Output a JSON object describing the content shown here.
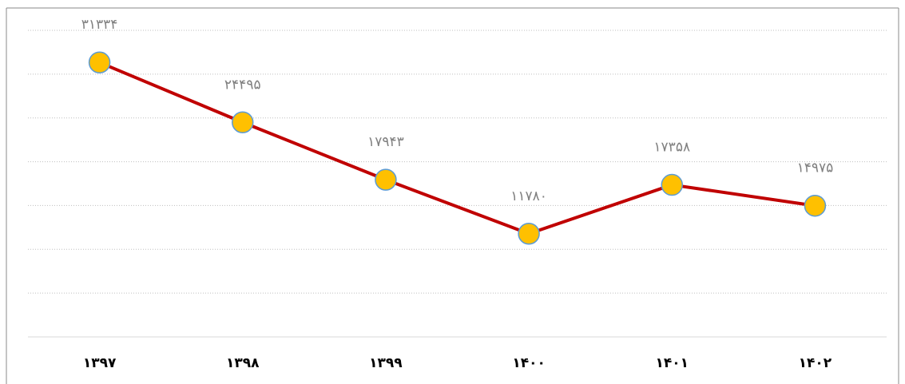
{
  "chart_data": {
    "type": "line",
    "categories": [
      "۱۳۹۷",
      "۱۳۹۸",
      "۱۳۹۹",
      "۱۴۰۰",
      "۱۴۰۱",
      "۱۴۰۲"
    ],
    "series": [
      {
        "color": "#c00000",
        "marker_color": "#ffc000",
        "marker_edge": "#5b9bd5",
        "values": [
          31334,
          24495,
          17943,
          11780,
          17358,
          14975
        ],
        "value_labels": [
          "۳۱۳۳۴",
          "۲۴۴۹۵",
          "۱۷۹۴۳",
          "۱۱۷۸۰",
          "۱۷۳۵۸",
          "۱۴۹۷۵"
        ]
      }
    ],
    "ylim": [
      0,
      35000
    ],
    "yticks": [
      0,
      5000,
      10000,
      15000,
      20000,
      25000,
      30000,
      35000
    ],
    "grid": true
  }
}
